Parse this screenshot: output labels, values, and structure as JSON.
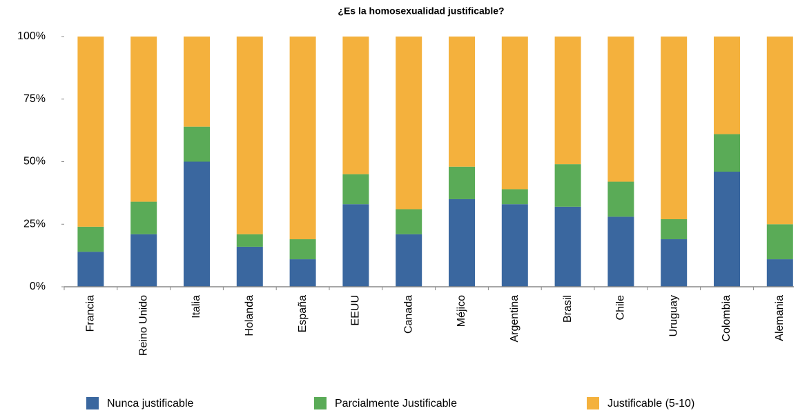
{
  "chart_data": {
    "type": "stacked_bar",
    "title": "¿Es la homosexualidad justificable?",
    "categories": [
      "Francia",
      "Reino Unido",
      "Italia",
      "Holanda",
      "España",
      "EEUU",
      "Canada",
      "Méjico",
      "Argentina",
      "Brasil",
      "Chile",
      "Uruguay",
      "Colombia",
      "Alemania"
    ],
    "series": [
      {
        "name": "Nunca justificable",
        "color": "#3a679f",
        "values": [
          14,
          21,
          50,
          16,
          11,
          33,
          21,
          35,
          33,
          32,
          28,
          19,
          46,
          11
        ]
      },
      {
        "name": "Parcialmente Justificable",
        "color": "#5aab57",
        "values": [
          10,
          13,
          14,
          5,
          8,
          12,
          10,
          13,
          6,
          17,
          14,
          8,
          15,
          14
        ]
      },
      {
        "name": "Justificable (5-10)",
        "color": "#f4b13d",
        "values": [
          76,
          66,
          36,
          79,
          81,
          55,
          69,
          52,
          61,
          51,
          58,
          73,
          39,
          75
        ]
      }
    ],
    "ylim": [
      0,
      100
    ],
    "yticks": [
      {
        "value": 0,
        "label": "0%"
      },
      {
        "value": 25,
        "label": "25%"
      },
      {
        "value": 50,
        "label": "50%"
      },
      {
        "value": 75,
        "label": "75%"
      },
      {
        "value": 100,
        "label": "100%"
      }
    ],
    "grid": false,
    "legend": "bottom"
  }
}
